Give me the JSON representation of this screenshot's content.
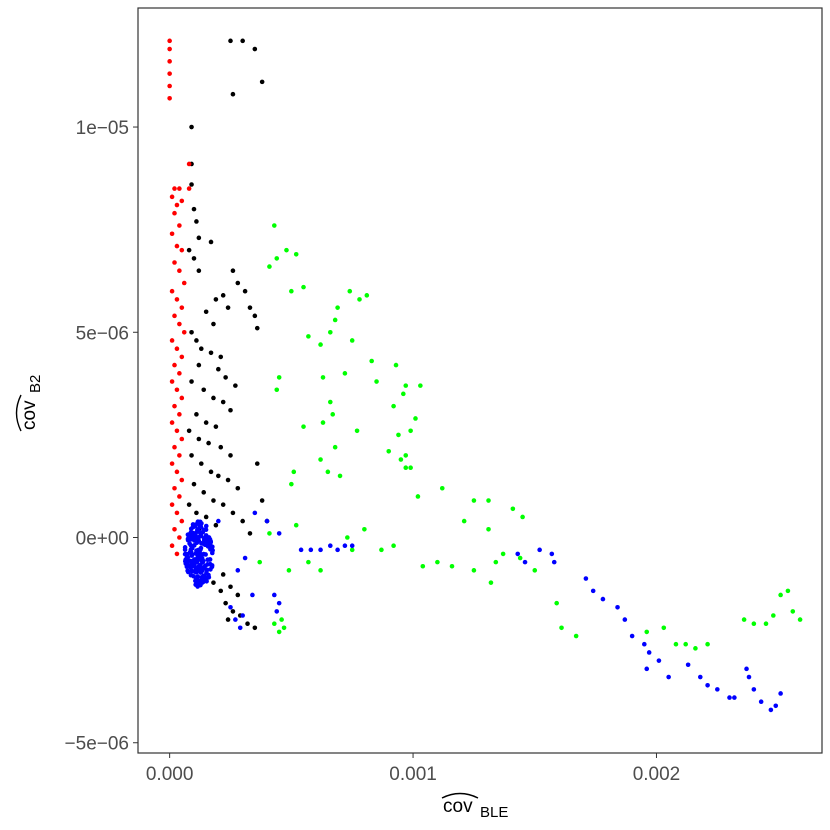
{
  "chart_data": {
    "type": "scatter",
    "title": "",
    "xlabel": {
      "main": "cov",
      "subscript": "BLE"
    },
    "ylabel": {
      "main": "cov",
      "subscript": "B2"
    },
    "xlim": [
      -0.00013,
      0.00268
    ],
    "ylim": [
      -5.25e-06,
      1.29e-05
    ],
    "x_ticks": [
      {
        "value": 0.0,
        "label": "0.000"
      },
      {
        "value": 0.001,
        "label": "0.001"
      },
      {
        "value": 0.002,
        "label": "0.002"
      }
    ],
    "y_ticks": [
      {
        "value": -5e-06,
        "label": "−5e−06"
      },
      {
        "value": 0.0,
        "label": "0e+00"
      },
      {
        "value": 5e-06,
        "label": "5e−06"
      },
      {
        "value": 1e-05,
        "label": "1e−05"
      }
    ],
    "grid": false,
    "legend": "none",
    "series": [
      {
        "color": "#000000",
        "points": [
          [
            0.00025,
            1.21e-05
          ],
          [
            0.0003,
            1.21e-05
          ],
          [
            0.00035,
            1.19e-05
          ],
          [
            0.00038,
            1.11e-05
          ],
          [
            0.00026,
            1.08e-05
          ],
          [
            9e-05,
            1e-05
          ],
          [
            9e-05,
            9.1e-06
          ],
          [
            9e-05,
            8.6e-06
          ],
          [
            0.0001,
            8e-06
          ],
          [
            0.00011,
            7.7e-06
          ],
          [
            0.00012,
            7.3e-06
          ],
          [
            0.00017,
            7.2e-06
          ],
          [
            8e-05,
            7e-06
          ],
          [
            0.0001,
            6.8e-06
          ],
          [
            0.00012,
            6.5e-06
          ],
          [
            0.00026,
            6.5e-06
          ],
          [
            0.00028,
            6.2e-06
          ],
          [
            0.00031,
            6e-06
          ],
          [
            0.00022,
            5.9e-06
          ],
          [
            0.00019,
            5.8e-06
          ],
          [
            0.00024,
            5.6e-06
          ],
          [
            0.00033,
            5.6e-06
          ],
          [
            0.00035,
            5.4e-06
          ],
          [
            0.00036,
            5.1e-06
          ],
          [
            0.00015,
            5.5e-06
          ],
          [
            0.00018,
            5.2e-06
          ],
          [
            9e-05,
            5e-06
          ],
          [
            0.00011,
            4.8e-06
          ],
          [
            0.00013,
            4.6e-06
          ],
          [
            0.00017,
            4.5e-06
          ],
          [
            0.00021,
            4.4e-06
          ],
          [
            0.0002,
            4.1e-06
          ],
          [
            0.00023,
            3.9e-06
          ],
          [
            0.00027,
            3.7e-06
          ],
          [
            0.00012,
            4.2e-06
          ],
          [
            9e-05,
            3.8e-06
          ],
          [
            0.00014,
            3.6e-06
          ],
          [
            0.00018,
            3.4e-06
          ],
          [
            0.00022,
            3.3e-06
          ],
          [
            0.00025,
            3.1e-06
          ],
          [
            0.00011,
            3e-06
          ],
          [
            0.00015,
            2.8e-06
          ],
          [
            0.00019,
            2.7e-06
          ],
          [
            8e-05,
            2.6e-06
          ],
          [
            0.00012,
            2.4e-06
          ],
          [
            0.00016,
            2.3e-06
          ],
          [
            0.00021,
            2.2e-06
          ],
          [
            0.00025,
            2e-06
          ],
          [
            9e-05,
            2e-06
          ],
          [
            0.00013,
            1.8e-06
          ],
          [
            0.00017,
            1.6e-06
          ],
          [
            0.00036,
            1.8e-06
          ],
          [
            0.0002,
            1.5e-06
          ],
          [
            0.00024,
            1.4e-06
          ],
          [
            0.00028,
            1.2e-06
          ],
          [
            0.0001,
            1.3e-06
          ],
          [
            0.00014,
            1.1e-06
          ],
          [
            0.00018,
            9e-07
          ],
          [
            0.00022,
            8e-07
          ],
          [
            8e-05,
            8e-07
          ],
          [
            0.00011,
            6e-07
          ],
          [
            0.00015,
            5e-07
          ],
          [
            0.00026,
            6e-07
          ],
          [
            0.0003,
            4e-07
          ],
          [
            0.00038,
            9e-07
          ],
          [
            0.0004,
            4e-07
          ],
          [
            0.00012,
            2e-07
          ],
          [
            0.00019,
            3e-07
          ],
          [
            0.00033,
            1e-07
          ],
          [
            0.00022,
            -9e-07
          ],
          [
            0.00025,
            -1.2e-06
          ],
          [
            0.00028,
            -1.4e-06
          ],
          [
            0.00023,
            -1.6e-06
          ],
          [
            0.00026,
            -1.8e-06
          ],
          [
            0.00029,
            -1.9e-06
          ],
          [
            0.00032,
            -2.1e-06
          ],
          [
            0.00035,
            -2.2e-06
          ],
          [
            0.00021,
            -1.3e-06
          ],
          [
            0.00018,
            -1.1e-06
          ],
          [
            0.00024,
            -2e-06
          ]
        ]
      },
      {
        "color": "#ff0000",
        "points": [
          [
            0.0,
            1.21e-05
          ],
          [
            0.0,
            1.19e-05
          ],
          [
            0.0,
            1.16e-05
          ],
          [
            0.0,
            1.13e-05
          ],
          [
            0.0,
            1.1e-05
          ],
          [
            0.0,
            1.07e-05
          ],
          [
            8e-05,
            9.1e-06
          ],
          [
            2e-05,
            8.5e-06
          ],
          [
            4e-05,
            8.5e-06
          ],
          [
            1e-05,
            8.3e-06
          ],
          [
            3e-05,
            8.1e-06
          ],
          [
            5e-05,
            8.2e-06
          ],
          [
            8e-05,
            8.5e-06
          ],
          [
            2e-05,
            7.9e-06
          ],
          [
            4e-05,
            7.6e-06
          ],
          [
            1e-05,
            7.4e-06
          ],
          [
            3e-05,
            7.1e-06
          ],
          [
            5e-05,
            7e-06
          ],
          [
            2e-05,
            6.7e-06
          ],
          [
            4e-05,
            6.5e-06
          ],
          [
            6e-05,
            6.2e-06
          ],
          [
            1e-05,
            6e-06
          ],
          [
            3e-05,
            5.8e-06
          ],
          [
            5e-05,
            5.6e-06
          ],
          [
            2e-05,
            5.4e-06
          ],
          [
            4e-05,
            5.2e-06
          ],
          [
            6e-05,
            5e-06
          ],
          [
            1e-05,
            4.8e-06
          ],
          [
            3e-05,
            4.6e-06
          ],
          [
            5e-05,
            4.4e-06
          ],
          [
            2e-05,
            4.2e-06
          ],
          [
            4e-05,
            4e-06
          ],
          [
            1e-05,
            3.8e-06
          ],
          [
            3e-05,
            3.6e-06
          ],
          [
            5e-05,
            3.4e-06
          ],
          [
            2e-05,
            3.2e-06
          ],
          [
            4e-05,
            3e-06
          ],
          [
            1e-05,
            2.8e-06
          ],
          [
            3e-05,
            2.6e-06
          ],
          [
            5e-05,
            2.4e-06
          ],
          [
            2e-05,
            2.2e-06
          ],
          [
            4e-05,
            2e-06
          ],
          [
            1e-05,
            1.8e-06
          ],
          [
            3e-05,
            1.6e-06
          ],
          [
            5e-05,
            1.4e-06
          ],
          [
            2e-05,
            1.2e-06
          ],
          [
            4e-05,
            1e-06
          ],
          [
            1e-05,
            8e-07
          ],
          [
            3e-05,
            6e-07
          ],
          [
            5e-05,
            4e-07
          ],
          [
            2e-05,
            2e-07
          ],
          [
            4e-05,
            0.0
          ],
          [
            1e-05,
            -2e-07
          ],
          [
            3e-05,
            -4e-07
          ]
        ]
      },
      {
        "color": "#00ff00",
        "points": [
          [
            0.00043,
            7.6e-06
          ],
          [
            0.00048,
            7e-06
          ],
          [
            0.00044,
            6.8e-06
          ],
          [
            0.00052,
            6.9e-06
          ],
          [
            0.00041,
            6.6e-06
          ],
          [
            0.0005,
            6e-06
          ],
          [
            0.00055,
            6.1e-06
          ],
          [
            0.00074,
            6e-06
          ],
          [
            0.00081,
            5.9e-06
          ],
          [
            0.00078,
            5.8e-06
          ],
          [
            0.00069,
            5.6e-06
          ],
          [
            0.00068,
            5.3e-06
          ],
          [
            0.00066,
            5e-06
          ],
          [
            0.00057,
            4.9e-06
          ],
          [
            0.00062,
            4.7e-06
          ],
          [
            0.00075,
            4.8e-06
          ],
          [
            0.00083,
            4.3e-06
          ],
          [
            0.00093,
            4.2e-06
          ],
          [
            0.00063,
            3.9e-06
          ],
          [
            0.00072,
            4e-06
          ],
          [
            0.00085,
            3.8e-06
          ],
          [
            0.00097,
            3.7e-06
          ],
          [
            0.00103,
            3.7e-06
          ],
          [
            0.00096,
            3.5e-06
          ],
          [
            0.00092,
            3.2e-06
          ],
          [
            0.00045,
            3.9e-06
          ],
          [
            0.00044,
            3.6e-06
          ],
          [
            0.00066,
            3.3e-06
          ],
          [
            0.00067,
            3e-06
          ],
          [
            0.00063,
            2.8e-06
          ],
          [
            0.00055,
            2.7e-06
          ],
          [
            0.00077,
            2.6e-06
          ],
          [
            0.00094,
            2.5e-06
          ],
          [
            0.00099,
            2.6e-06
          ],
          [
            0.00101,
            2.9e-06
          ],
          [
            0.0009,
            2.1e-06
          ],
          [
            0.00097,
            2e-06
          ],
          [
            0.00095,
            1.9e-06
          ],
          [
            0.00099,
            1.7e-06
          ],
          [
            0.00068,
            2.2e-06
          ],
          [
            0.00062,
            1.9e-06
          ],
          [
            0.00065,
            1.6e-06
          ],
          [
            0.0007,
            1.5e-06
          ],
          [
            0.00051,
            1.6e-06
          ],
          [
            0.0005,
            1.3e-06
          ],
          [
            0.00097,
            1.7e-06
          ],
          [
            0.00102,
            1e-06
          ],
          [
            0.00112,
            1.2e-06
          ],
          [
            0.00125,
            9e-07
          ],
          [
            0.00131,
            9e-07
          ],
          [
            0.00141,
            7e-07
          ],
          [
            0.00145,
            5e-07
          ],
          [
            0.00131,
            2e-07
          ],
          [
            0.00121,
            4e-07
          ],
          [
            0.0008,
            2e-07
          ],
          [
            0.00073,
            0.0
          ],
          [
            0.00075,
            -3e-07
          ],
          [
            0.00087,
            -3e-07
          ],
          [
            0.00092,
            -2e-07
          ],
          [
            0.0011,
            -6e-07
          ],
          [
            0.00104,
            -7e-07
          ],
          [
            0.00116,
            -7e-07
          ],
          [
            0.00125,
            -8e-07
          ],
          [
            0.00132,
            -1.1e-06
          ],
          [
            0.00134,
            -6e-07
          ],
          [
            0.00137,
            -4e-07
          ],
          [
            0.00144,
            -5e-07
          ],
          [
            0.0015,
            -8e-07
          ],
          [
            0.00159,
            -1.6e-06
          ],
          [
            0.00161,
            -2.2e-06
          ],
          [
            0.00167,
            -2.4e-06
          ],
          [
            0.00196,
            -2.3e-06
          ],
          [
            0.00203,
            -2.2e-06
          ],
          [
            0.00208,
            -2.6e-06
          ],
          [
            0.00212,
            -2.6e-06
          ],
          [
            0.00216,
            -2.7e-06
          ],
          [
            0.00221,
            -2.6e-06
          ],
          [
            0.00236,
            -2e-06
          ],
          [
            0.0024,
            -2.1e-06
          ],
          [
            0.00245,
            -2.1e-06
          ],
          [
            0.00248,
            -1.9e-06
          ],
          [
            0.00251,
            -1.4e-06
          ],
          [
            0.00254,
            -1.3e-06
          ],
          [
            0.00256,
            -1.8e-06
          ],
          [
            0.00259,
            -2e-06
          ],
          [
            0.00046,
            -2e-06
          ],
          [
            0.00047,
            -2.2e-06
          ],
          [
            0.00045,
            -2.3e-06
          ],
          [
            0.00043,
            -2.1e-06
          ],
          [
            0.00037,
            -6e-07
          ],
          [
            0.00041,
            1e-07
          ],
          [
            0.00049,
            -8e-07
          ],
          [
            0.00057,
            -6e-07
          ],
          [
            0.00062,
            -8e-07
          ],
          [
            0.00052,
            3e-07
          ]
        ]
      },
      {
        "color": "#0000ff",
        "points": [
          [
            0.0002,
            4e-07
          ],
          [
            0.00035,
            6e-07
          ],
          [
            0.0004,
            4e-07
          ],
          [
            0.00045,
            1e-07
          ],
          [
            0.00054,
            -3e-07
          ],
          [
            0.00058,
            -3e-07
          ],
          [
            0.00062,
            -3e-07
          ],
          [
            0.00066,
            -2e-07
          ],
          [
            0.00069,
            -3e-07
          ],
          [
            0.00072,
            -2e-07
          ],
          [
            0.00075,
            -2e-07
          ],
          [
            0.00031,
            -5e-07
          ],
          [
            0.00028,
            -8e-07
          ],
          [
            0.00034,
            -1.4e-06
          ],
          [
            0.00043,
            -1.4e-06
          ],
          [
            0.00045,
            -1.6e-06
          ],
          [
            0.00044,
            -1.8e-06
          ],
          [
            0.0003,
            -1.9e-06
          ],
          [
            0.00029,
            -2.2e-06
          ],
          [
            0.00027,
            -2e-06
          ],
          [
            0.00025,
            -1.7e-06
          ],
          [
            0.00143,
            -4e-07
          ],
          [
            0.00146,
            -6e-07
          ],
          [
            0.00152,
            -3e-07
          ],
          [
            0.00157,
            -4e-07
          ],
          [
            0.00158,
            -6e-07
          ],
          [
            0.00171,
            -1e-06
          ],
          [
            0.00174,
            -1.3e-06
          ],
          [
            0.00178,
            -1.5e-06
          ],
          [
            0.00184,
            -1.7e-06
          ],
          [
            0.00187,
            -2e-06
          ],
          [
            0.0019,
            -2.4e-06
          ],
          [
            0.00195,
            -2.6e-06
          ],
          [
            0.00197,
            -2.8e-06
          ],
          [
            0.00201,
            -3e-06
          ],
          [
            0.00196,
            -3.2e-06
          ],
          [
            0.00205,
            -3.4e-06
          ],
          [
            0.00213,
            -3.1e-06
          ],
          [
            0.00218,
            -3.4e-06
          ],
          [
            0.00221,
            -3.6e-06
          ],
          [
            0.00225,
            -3.7e-06
          ],
          [
            0.0023,
            -3.9e-06
          ],
          [
            0.00237,
            -3.2e-06
          ],
          [
            0.0024,
            -3.7e-06
          ],
          [
            0.00243,
            -4e-06
          ],
          [
            0.00247,
            -4.2e-06
          ],
          [
            0.00249,
            -4.1e-06
          ],
          [
            0.00251,
            -3.8e-06
          ],
          [
            0.00238,
            -3.4e-06
          ],
          [
            0.00232,
            -3.9e-06
          ]
        ]
      }
    ],
    "dense_cluster": {
      "color": "#0000ff",
      "center": [
        0.00012,
        -4e-07
      ],
      "spread": [
        6e-05,
        8e-07
      ]
    }
  }
}
